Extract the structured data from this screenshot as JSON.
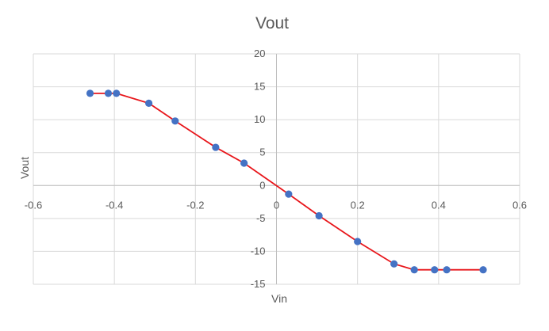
{
  "chart_data": {
    "type": "scatter",
    "title": "Vout",
    "xlabel": "Vin",
    "ylabel": "Vout",
    "xlim": [
      -0.6,
      0.6
    ],
    "ylim": [
      -15,
      20
    ],
    "x_ticks": [
      -0.6,
      -0.4,
      -0.2,
      0,
      0.2,
      0.4,
      0.6
    ],
    "y_ticks": [
      -15,
      -10,
      -5,
      0,
      5,
      10,
      15,
      20
    ],
    "x_tick_labels": [
      "-0.6",
      "-0.4",
      "-0.2",
      "0",
      "0.2",
      "0.4",
      "0.6"
    ],
    "y_tick_labels": [
      "-15",
      "-10",
      "-5",
      "0",
      "5",
      "10",
      "15",
      "20"
    ],
    "grid": true,
    "legend": "none",
    "line_color": "#e8161b",
    "marker_color": "#4472c4",
    "series": [
      {
        "x": [
          -0.46,
          -0.415,
          -0.395,
          -0.315,
          -0.25,
          -0.15,
          -0.08,
          0.03,
          0.105,
          0.2,
          0.29,
          0.34,
          0.39,
          0.42,
          0.51
        ],
        "y": [
          14,
          14,
          14,
          12.5,
          9.8,
          5.8,
          3.4,
          -1.3,
          -4.6,
          -8.5,
          -11.9,
          -12.8,
          -12.8,
          -12.8,
          -12.8
        ]
      }
    ]
  }
}
